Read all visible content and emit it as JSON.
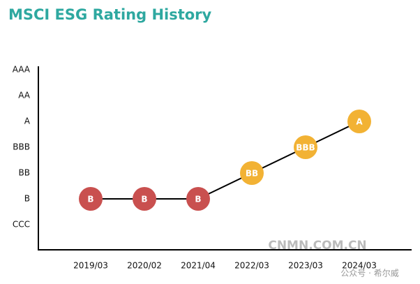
{
  "chart_data": {
    "type": "line",
    "title": "MSCI ESG Rating History",
    "categories": [
      "2019/03",
      "2020/02",
      "2021/04",
      "2022/03",
      "2023/03",
      "2024/03"
    ],
    "y_categories": [
      "CCC",
      "B",
      "BB",
      "BBB",
      "A",
      "AA",
      "AAA"
    ],
    "values": [
      "B",
      "B",
      "B",
      "BB",
      "BBB",
      "A"
    ],
    "point_colors": [
      "#c9504f",
      "#c9504f",
      "#c9504f",
      "#f2b234",
      "#f2b234",
      "#f2b234"
    ],
    "line_color": "#000000",
    "title_color": "#2ea8a0",
    "watermarks": [
      "CNMN.COM.CN",
      "公众号 · 希尔威"
    ]
  }
}
